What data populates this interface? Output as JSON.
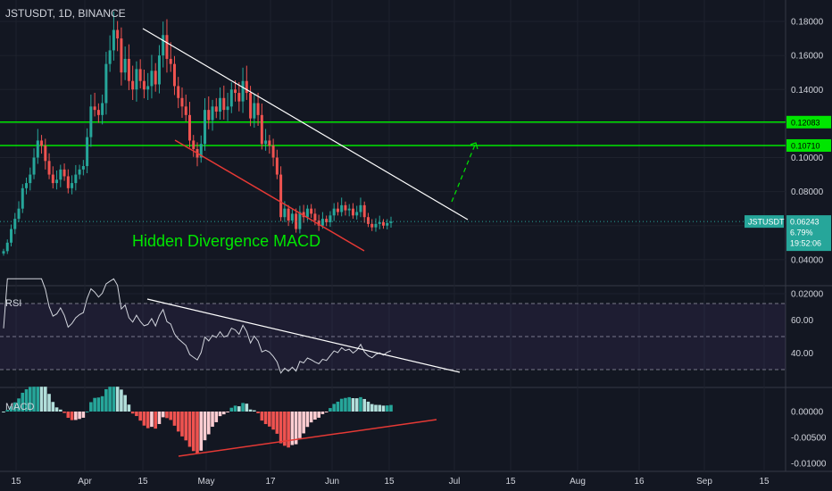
{
  "header": {
    "title": "JSTUSDT, 1D, BINANCE"
  },
  "theme": {
    "bg": "#131722",
    "grid": "#1e222d",
    "text": "#d1d4dc",
    "up": "#26a69a",
    "down": "#ef5350",
    "level": "#00e600",
    "trend": "#ffffff",
    "bearish_trend": "#e53935"
  },
  "chart_data": [
    {
      "type": "candlestick",
      "title": "JSTUSDT, 1D, BINANCE",
      "ylim": [
        0.01,
        0.195
      ],
      "y_ticks": [
        "0.18000",
        "0.16000",
        "0.14000",
        "0.12000",
        "0.10000",
        "0.08000",
        "0.06000",
        "0.04000",
        "0.02000"
      ],
      "y_tick_values": [
        0.18,
        0.16,
        0.14,
        0.12,
        0.1,
        0.08,
        0.06,
        0.04,
        0.02
      ],
      "x_ticks": [
        "15",
        "Apr",
        "15",
        "May",
        "17",
        "Jun",
        "15",
        "Jul",
        "15",
        "Aug",
        "16",
        "Sep",
        "15"
      ],
      "close": [
        0.045,
        0.05,
        0.058,
        0.064,
        0.07,
        0.082,
        0.085,
        0.09,
        0.1,
        0.11,
        0.107,
        0.098,
        0.09,
        0.085,
        0.087,
        0.093,
        0.089,
        0.082,
        0.085,
        0.09,
        0.093,
        0.095,
        0.112,
        0.13,
        0.128,
        0.125,
        0.132,
        0.155,
        0.163,
        0.175,
        0.17,
        0.15,
        0.158,
        0.145,
        0.14,
        0.152,
        0.145,
        0.14,
        0.142,
        0.151,
        0.143,
        0.16,
        0.172,
        0.158,
        0.155,
        0.142,
        0.135,
        0.13,
        0.125,
        0.11,
        0.105,
        0.1,
        0.108,
        0.128,
        0.122,
        0.13,
        0.127,
        0.135,
        0.128,
        0.13,
        0.14,
        0.138,
        0.133,
        0.145,
        0.138,
        0.123,
        0.132,
        0.125,
        0.108,
        0.11,
        0.107,
        0.1,
        0.09,
        0.065,
        0.07,
        0.063,
        0.067,
        0.058,
        0.068,
        0.065,
        0.07,
        0.067,
        0.063,
        0.06,
        0.064,
        0.062,
        0.066,
        0.07,
        0.068,
        0.072,
        0.069,
        0.07,
        0.066,
        0.068,
        0.072,
        0.065,
        0.061,
        0.059,
        0.061,
        0.062,
        0.06,
        0.0615,
        0.0624
      ],
      "current_price": {
        "label": "JSTUSDT",
        "value": "0.06243",
        "change": "6.79%",
        "countdown": "19:52:06"
      },
      "levels": [
        {
          "value": 0.12083,
          "label": "0.12083"
        },
        {
          "value": 0.1071,
          "label": "0.10710"
        }
      ],
      "annotation": "Hidden Divergence MACD"
    },
    {
      "type": "line",
      "name": "RSI",
      "ylim": [
        20,
        80
      ],
      "y_ticks": [
        "60.00",
        "40.00"
      ],
      "y_tick_values": [
        60,
        40
      ],
      "bands": [
        70,
        50,
        30
      ]
    },
    {
      "type": "histogram",
      "name": "MACD",
      "ylim": [
        -0.0108,
        0.0052
      ],
      "y_ticks": [
        "0.00000",
        "-0.00500",
        "-0.01000"
      ],
      "y_tick_values": [
        0,
        -0.005,
        -0.01
      ]
    }
  ]
}
